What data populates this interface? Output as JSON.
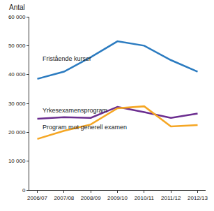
{
  "chart_data": {
    "type": "line",
    "ylabel": "Antal",
    "categories": [
      "2006/07",
      "2007/08",
      "2008/09",
      "2009/10",
      "2010/11",
      "2011/12",
      "2012/13"
    ],
    "series": [
      {
        "name": "Fristående kurser",
        "color": "#2b7bc0",
        "values": [
          38500,
          41000,
          46000,
          51500,
          50000,
          45000,
          41000
        ]
      },
      {
        "name": "Yrkesexamensprogram",
        "color": "#6b2d8f",
        "values": [
          24700,
          25200,
          25000,
          28800,
          27000,
          25000,
          26500
        ]
      },
      {
        "name": "Program mot generell examen",
        "color": "#f5a623",
        "values": [
          17700,
          20500,
          22700,
          28300,
          29000,
          22000,
          22500
        ]
      }
    ],
    "ylim": [
      0,
      60000
    ],
    "yticks": [
      0,
      {
        "value": 10000,
        "label": "10 000"
      },
      {
        "value": 20000,
        "label": "20 000"
      },
      {
        "value": 30000,
        "label": "30 000"
      },
      {
        "value": 40000,
        "label": "40 000"
      },
      {
        "value": 50000,
        "label": "50 000"
      },
      {
        "value": 60000,
        "label": "60 000"
      }
    ],
    "grid": false,
    "legend": "none"
  }
}
